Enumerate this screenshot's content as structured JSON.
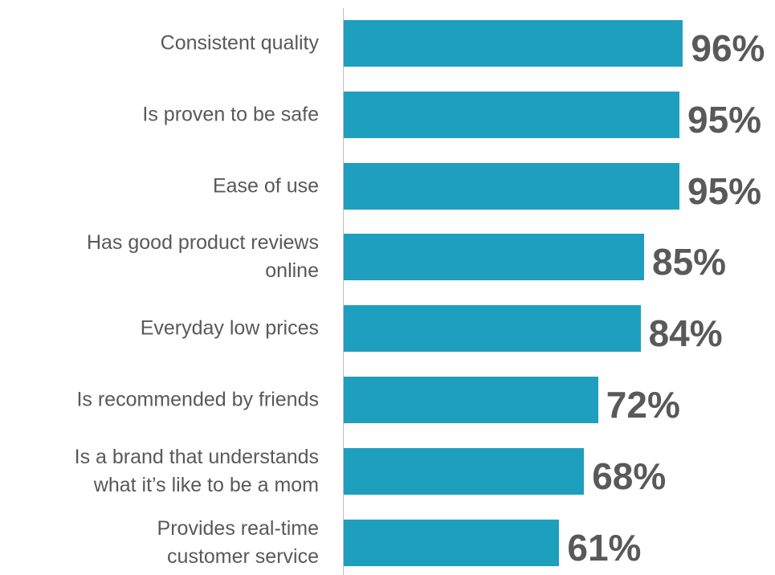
{
  "chart_data": {
    "type": "bar",
    "orientation": "horizontal",
    "categories": [
      "Consistent quality",
      "Is proven to be safe",
      "Ease of use",
      "Has good product reviews\nonline",
      "Everyday low prices",
      "Is recommended by friends",
      "Is a brand that understands\nwhat it’s like to be a mom",
      "Provides real-time\ncustomer service"
    ],
    "values": [
      96,
      95,
      95,
      85,
      84,
      72,
      68,
      61
    ],
    "value_labels": [
      "96%",
      "95%",
      "95%",
      "85%",
      "84%",
      "72%",
      "68%",
      "61%"
    ],
    "color": "#1f9fbe",
    "xlim": [
      0,
      100
    ]
  }
}
